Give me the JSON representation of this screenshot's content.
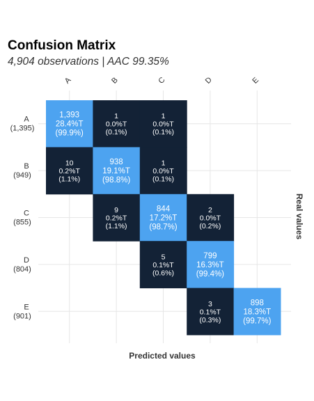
{
  "title": "Confusion Matrix",
  "subtitle": "4,904 observations | AAC 99.35%",
  "chart_data": {
    "type": "heatmap",
    "xlabel": "Predicted values",
    "ylabel": "Real values",
    "columns": [
      "A",
      "B",
      "C",
      "D",
      "E"
    ],
    "rows": [
      {
        "label": "A",
        "count": "(1,395)"
      },
      {
        "label": "B",
        "count": "(949)"
      },
      {
        "label": "C",
        "count": "(855)"
      },
      {
        "label": "D",
        "count": "(804)"
      },
      {
        "label": "E",
        "count": "(901)"
      }
    ],
    "colors": {
      "diagonal": "#4da3f0",
      "off_diagonal": "#132236",
      "grid": "#e6e6e6"
    },
    "cells": [
      {
        "row": 0,
        "col": 0,
        "lines": [
          "1,393",
          "28.4%T",
          "(99.9%)"
        ]
      },
      {
        "row": 0,
        "col": 1,
        "lines": [
          "1",
          "0.0%T",
          "(0.1%)"
        ]
      },
      {
        "row": 0,
        "col": 2,
        "lines": [
          "1",
          "0.0%T",
          "(0.1%)"
        ]
      },
      {
        "row": 1,
        "col": 0,
        "lines": [
          "10",
          "0.2%T",
          "(1.1%)"
        ]
      },
      {
        "row": 1,
        "col": 1,
        "lines": [
          "938",
          "19.1%T",
          "(98.8%)"
        ]
      },
      {
        "row": 1,
        "col": 2,
        "lines": [
          "1",
          "0.0%T",
          "(0.1%)"
        ]
      },
      {
        "row": 2,
        "col": 1,
        "lines": [
          "9",
          "0.2%T",
          "(1.1%)"
        ]
      },
      {
        "row": 2,
        "col": 2,
        "lines": [
          "844",
          "17.2%T",
          "(98.7%)"
        ]
      },
      {
        "row": 2,
        "col": 3,
        "lines": [
          "2",
          "0.0%T",
          "(0.2%)"
        ]
      },
      {
        "row": 3,
        "col": 2,
        "lines": [
          "5",
          "0.1%T",
          "(0.6%)"
        ]
      },
      {
        "row": 3,
        "col": 3,
        "lines": [
          "799",
          "16.3%T",
          "(99.4%)"
        ]
      },
      {
        "row": 4,
        "col": 3,
        "lines": [
          "3",
          "0.1%T",
          "(0.3%)"
        ]
      },
      {
        "row": 4,
        "col": 4,
        "lines": [
          "898",
          "18.3%T",
          "(99.7%)"
        ]
      }
    ]
  }
}
